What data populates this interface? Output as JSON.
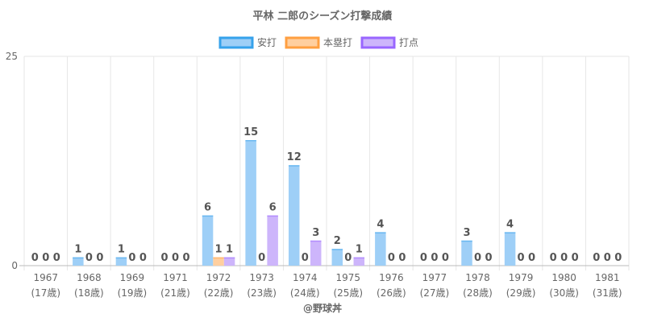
{
  "chart_data": {
    "type": "bar",
    "title": "平林 二郎のシーズン打撃成績",
    "categories": [
      "1967",
      "1968",
      "1969",
      "1971",
      "1972",
      "1973",
      "1974",
      "1975",
      "1976",
      "1977",
      "1978",
      "1979",
      "1980",
      "1981"
    ],
    "category_sublabels": [
      "(17歳)",
      "(18歳)",
      "(19歳)",
      "(21歳)",
      "(22歳)",
      "(23歳)",
      "(24歳)",
      "(25歳)",
      "(26歳)",
      "(27歳)",
      "(28歳)",
      "(29歳)",
      "(30歳)",
      "(31歳)"
    ],
    "series": [
      {
        "name": "安打",
        "color": "#9ecff7",
        "border": "#36a2eb",
        "values": [
          0,
          1,
          1,
          0,
          6,
          15,
          12,
          2,
          4,
          0,
          3,
          4,
          0,
          0
        ]
      },
      {
        "name": "本塁打",
        "color": "#ffcf9f",
        "border": "#ff9f40",
        "values": [
          0,
          0,
          0,
          0,
          1,
          0,
          0,
          0,
          0,
          0,
          0,
          0,
          0,
          0
        ]
      },
      {
        "name": "打点",
        "color": "#cdb5fb",
        "border": "#9966ff",
        "values": [
          0,
          0,
          0,
          0,
          1,
          6,
          3,
          1,
          0,
          0,
          0,
          0,
          0,
          0
        ]
      }
    ],
    "ylim": [
      0,
      25
    ],
    "y_ticks": [
      "0",
      "25"
    ],
    "legend": "top",
    "grid": true
  },
  "credit": "@野球丼"
}
